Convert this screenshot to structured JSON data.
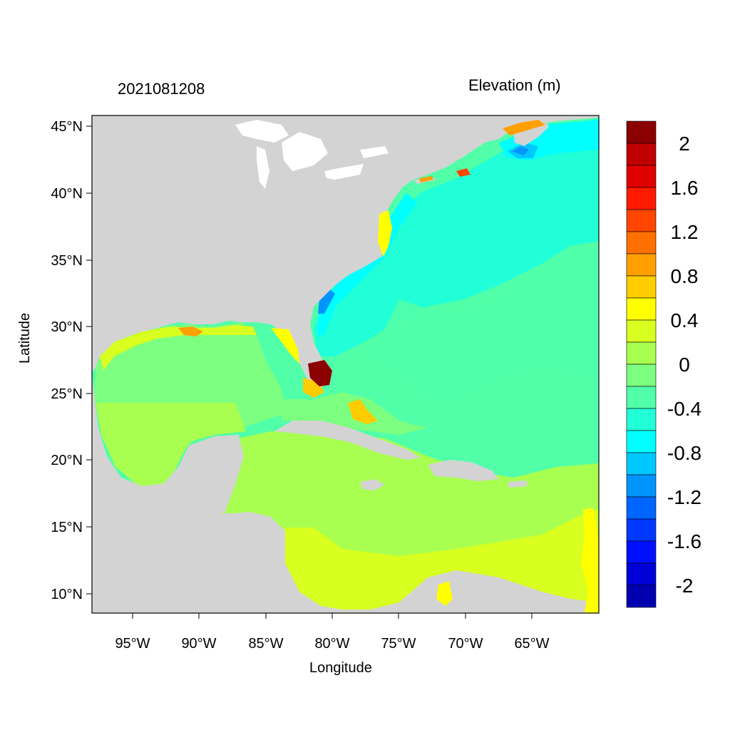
{
  "map": {
    "title_left": "2021081208",
    "title_right": "Elevation (m)",
    "xlabel": "Longitude",
    "ylabel": "Latitude",
    "lon_ticks": [
      "95°W",
      "90°W",
      "85°W",
      "80°W",
      "75°W",
      "70°W",
      "65°W"
    ],
    "lat_ticks": [
      "45°N",
      "40°N",
      "35°N",
      "30°N",
      "25°N",
      "20°N",
      "15°N",
      "10°N"
    ],
    "colors": {
      "land": "#d3d3d3",
      "inland_water": "#ffffff"
    }
  },
  "colorbar": {
    "labels": [
      "2",
      "1.6",
      "1.2",
      "0.8",
      "0.4",
      "0",
      "-0.4",
      "-0.8",
      "-1.2",
      "-1.6",
      "-2"
    ],
    "colors": [
      "#8b0000",
      "#c00000",
      "#e00000",
      "#ff1a00",
      "#ff4500",
      "#ff7000",
      "#ffa000",
      "#ffcc00",
      "#ffff00",
      "#d8ff20",
      "#a8ff50",
      "#7cff80",
      "#50ffa8",
      "#20ffd8",
      "#00ffff",
      "#00c8ff",
      "#0094ff",
      "#0066ff",
      "#0038ff",
      "#0010ff",
      "#0000d8",
      "#0000b0"
    ]
  }
}
